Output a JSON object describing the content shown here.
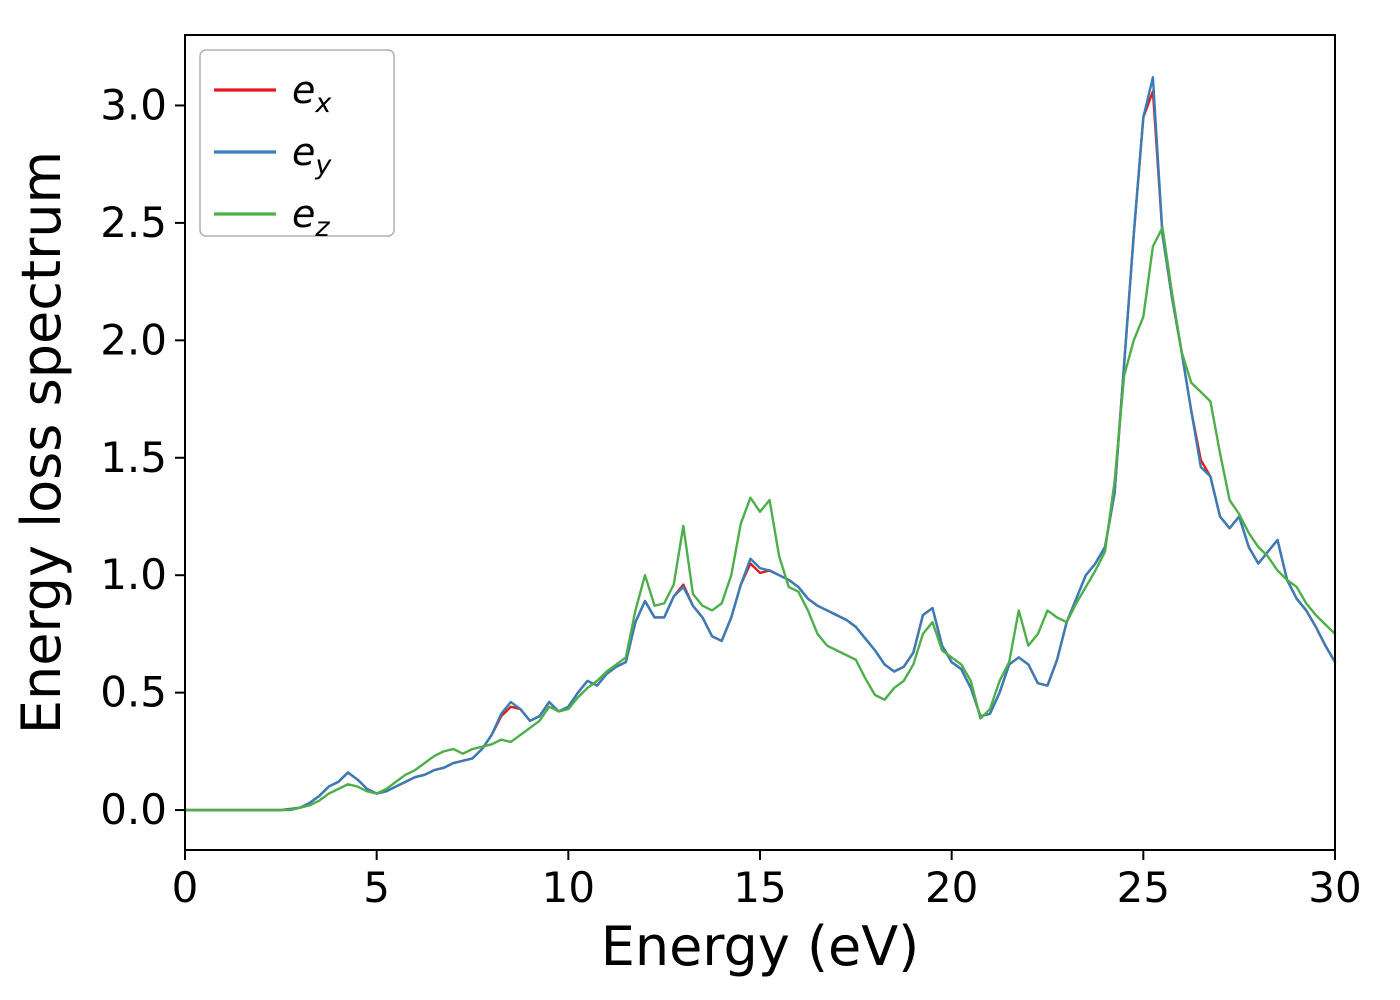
{
  "figure": {
    "background": "#ffffff",
    "frame_color": "#000000"
  },
  "chart_data": {
    "type": "line",
    "title": "",
    "xlabel": "Energy (eV)",
    "ylabel": "Energy loss spectrum",
    "xlim": [
      0,
      30
    ],
    "ylim": [
      -0.17,
      3.3
    ],
    "grid": false,
    "legend_position": "upper left",
    "xticks": [
      0,
      5,
      10,
      15,
      20,
      25,
      30
    ],
    "xtick_labels": [
      "0",
      "5",
      "10",
      "15",
      "20",
      "25",
      "30"
    ],
    "yticks": [
      0,
      0.5,
      1.0,
      1.5,
      2.0,
      2.5,
      3.0
    ],
    "ytick_labels": [
      "0.0",
      "0.5",
      "1.0",
      "1.5",
      "2.0",
      "2.5",
      "3.0"
    ],
    "x": [
      0,
      0.25,
      0.5,
      0.75,
      1,
      1.25,
      1.5,
      1.75,
      2,
      2.25,
      2.5,
      2.75,
      3,
      3.25,
      3.5,
      3.75,
      4,
      4.25,
      4.5,
      4.75,
      5,
      5.25,
      5.5,
      5.75,
      6,
      6.25,
      6.5,
      6.75,
      7,
      7.25,
      7.5,
      7.75,
      8,
      8.25,
      8.5,
      8.75,
      9,
      9.25,
      9.5,
      9.75,
      10,
      10.25,
      10.5,
      10.75,
      11,
      11.25,
      11.5,
      11.75,
      12,
      12.25,
      12.5,
      12.75,
      13,
      13.25,
      13.5,
      13.75,
      14,
      14.25,
      14.5,
      14.75,
      15,
      15.25,
      15.5,
      15.75,
      16,
      16.25,
      16.5,
      16.75,
      17,
      17.25,
      17.5,
      17.75,
      18,
      18.25,
      18.5,
      18.75,
      19,
      19.25,
      19.5,
      19.75,
      20,
      20.25,
      20.5,
      20.75,
      21,
      21.25,
      21.5,
      21.75,
      22,
      22.25,
      22.5,
      22.75,
      23,
      23.25,
      23.5,
      23.75,
      24,
      24.25,
      24.5,
      24.75,
      25,
      25.25,
      25.5,
      25.75,
      26,
      26.25,
      26.5,
      26.75,
      27,
      27.25,
      27.5,
      27.75,
      28,
      28.25,
      28.5,
      28.75,
      29,
      29.25,
      29.5,
      29.75,
      30
    ],
    "series": [
      {
        "name": "e_x",
        "label_base": "e",
        "label_sub": "x",
        "color": "#e41a1c",
        "values": [
          0,
          0,
          0,
          0,
          0,
          0,
          0,
          0,
          0,
          0,
          0,
          0.005,
          0.01,
          0.03,
          0.06,
          0.1,
          0.12,
          0.16,
          0.13,
          0.09,
          0.07,
          0.08,
          0.1,
          0.12,
          0.14,
          0.15,
          0.17,
          0.18,
          0.2,
          0.21,
          0.22,
          0.26,
          0.32,
          0.4,
          0.44,
          0.43,
          0.38,
          0.4,
          0.46,
          0.42,
          0.44,
          0.5,
          0.55,
          0.53,
          0.58,
          0.61,
          0.63,
          0.8,
          0.89,
          0.82,
          0.82,
          0.91,
          0.96,
          0.87,
          0.82,
          0.74,
          0.72,
          0.82,
          0.96,
          1.05,
          1.01,
          1.02,
          1.0,
          0.98,
          0.95,
          0.9,
          0.87,
          0.85,
          0.83,
          0.81,
          0.78,
          0.73,
          0.68,
          0.62,
          0.59,
          0.61,
          0.67,
          0.83,
          0.86,
          0.7,
          0.63,
          0.6,
          0.52,
          0.4,
          0.41,
          0.5,
          0.62,
          0.65,
          0.62,
          0.54,
          0.53,
          0.64,
          0.8,
          0.9,
          1.0,
          1.05,
          1.12,
          1.35,
          1.9,
          2.45,
          2.95,
          3.06,
          2.45,
          2.18,
          1.95,
          1.7,
          1.49,
          1.42,
          1.25,
          1.2,
          1.25,
          1.12,
          1.05,
          1.1,
          1.15,
          0.98,
          0.9,
          0.85,
          0.78,
          0.7,
          0.63
        ]
      },
      {
        "name": "e_y",
        "label_base": "e",
        "label_sub": "y",
        "color": "#377eb8",
        "values": [
          0,
          0,
          0,
          0,
          0,
          0,
          0,
          0,
          0,
          0,
          0,
          0.005,
          0.01,
          0.03,
          0.06,
          0.1,
          0.12,
          0.16,
          0.13,
          0.09,
          0.07,
          0.08,
          0.1,
          0.12,
          0.14,
          0.15,
          0.17,
          0.18,
          0.2,
          0.21,
          0.22,
          0.26,
          0.32,
          0.41,
          0.46,
          0.43,
          0.38,
          0.4,
          0.46,
          0.42,
          0.44,
          0.5,
          0.55,
          0.53,
          0.58,
          0.61,
          0.63,
          0.8,
          0.89,
          0.82,
          0.82,
          0.91,
          0.95,
          0.87,
          0.82,
          0.74,
          0.72,
          0.82,
          0.96,
          1.07,
          1.03,
          1.02,
          1.0,
          0.98,
          0.95,
          0.9,
          0.87,
          0.85,
          0.83,
          0.81,
          0.78,
          0.73,
          0.68,
          0.62,
          0.59,
          0.61,
          0.67,
          0.83,
          0.86,
          0.7,
          0.63,
          0.6,
          0.52,
          0.4,
          0.41,
          0.5,
          0.62,
          0.65,
          0.62,
          0.54,
          0.53,
          0.64,
          0.8,
          0.9,
          1.0,
          1.05,
          1.12,
          1.35,
          1.9,
          2.45,
          2.95,
          3.12,
          2.45,
          2.18,
          1.95,
          1.7,
          1.46,
          1.42,
          1.25,
          1.2,
          1.25,
          1.12,
          1.05,
          1.1,
          1.15,
          0.98,
          0.9,
          0.85,
          0.78,
          0.7,
          0.63
        ]
      },
      {
        "name": "e_z",
        "label_base": "e",
        "label_sub": "z",
        "color": "#4daf4a",
        "values": [
          0,
          0,
          0,
          0,
          0,
          0,
          0,
          0,
          0,
          0,
          0,
          0,
          0.01,
          0.02,
          0.04,
          0.07,
          0.09,
          0.11,
          0.1,
          0.08,
          0.07,
          0.09,
          0.12,
          0.15,
          0.17,
          0.2,
          0.23,
          0.25,
          0.26,
          0.24,
          0.26,
          0.27,
          0.28,
          0.3,
          0.29,
          0.32,
          0.35,
          0.38,
          0.44,
          0.42,
          0.43,
          0.48,
          0.52,
          0.55,
          0.59,
          0.62,
          0.65,
          0.85,
          1.0,
          0.87,
          0.88,
          0.96,
          1.21,
          0.92,
          0.87,
          0.85,
          0.88,
          1.0,
          1.22,
          1.33,
          1.27,
          1.32,
          1.08,
          0.95,
          0.93,
          0.85,
          0.75,
          0.7,
          0.68,
          0.66,
          0.64,
          0.56,
          0.49,
          0.47,
          0.52,
          0.55,
          0.62,
          0.75,
          0.8,
          0.68,
          0.65,
          0.62,
          0.55,
          0.39,
          0.43,
          0.55,
          0.63,
          0.85,
          0.7,
          0.75,
          0.85,
          0.82,
          0.8,
          0.88,
          0.95,
          1.02,
          1.1,
          1.4,
          1.85,
          2.0,
          2.1,
          2.4,
          2.48,
          2.2,
          1.95,
          1.82,
          1.78,
          1.74,
          1.52,
          1.32,
          1.26,
          1.18,
          1.12,
          1.08,
          1.02,
          0.98,
          0.95,
          0.88,
          0.83,
          0.79,
          0.75
        ]
      }
    ]
  }
}
